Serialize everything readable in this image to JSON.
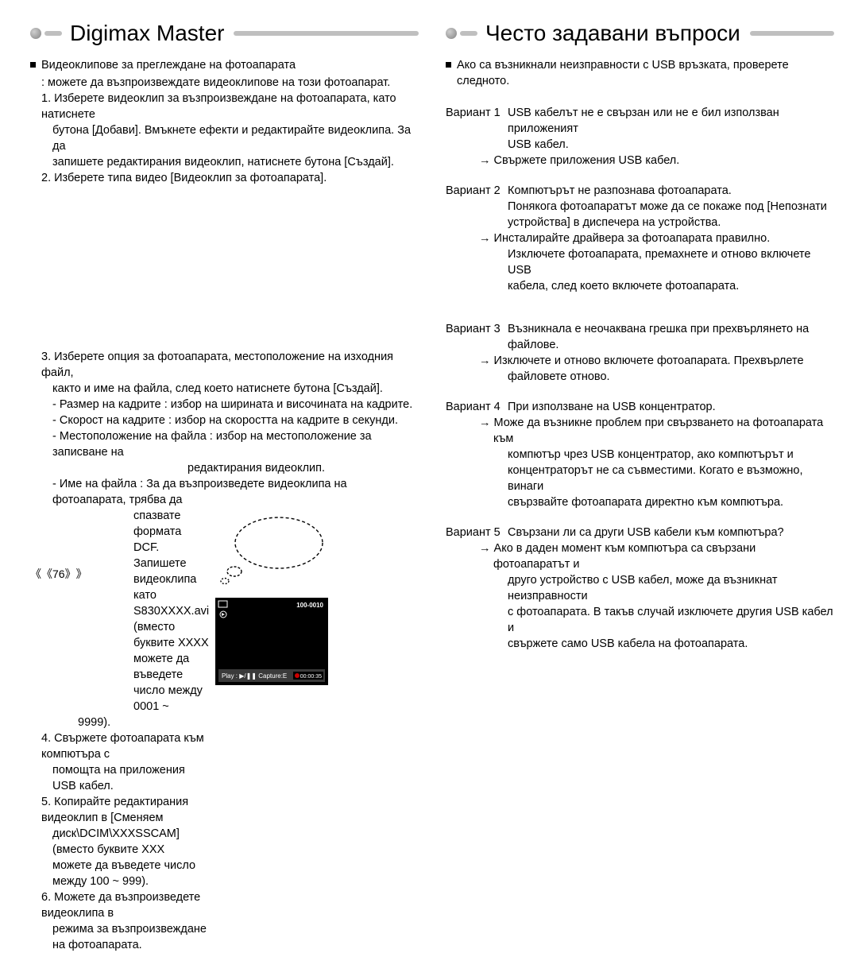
{
  "left": {
    "title": "Digimax Master",
    "bullet_intro": "Видеоклипове за преглеждане на фотоапарата",
    "intro_line2": ": можете да възпроизвеждате видеоклипове на този фотоапарат.",
    "step1_a": "1. Изберете видеоклип за възпроизвеждане на фотоапарата, като натиснете",
    "step1_b": "бутона [Добави]. Вмъкнете ефекти и редактирайте видеоклипа. За да",
    "step1_c": "запишете редактирания видеоклип, натиснете бутона [Създай].",
    "step2": "2. Изберете типа видео [Видеоклип за фотоапарата].",
    "step3_a": "3. Изберете опция за фотоапарата, местоположение на изходния файл,",
    "step3_b": "както и име на файла, след което натиснете бутона [Създай].",
    "step3_c": "- Размер на кадрите : избор на ширината и височината на кадрите.",
    "step3_d": "- Скорост на кадрите : избор на скоростта на кадрите в секунди.",
    "step3_e": "- Местоположение на файла : избор на местоположение за записване на",
    "step3_e2": "редактирания видеоклип.",
    "step3_f": "- Име на файла : За да възпроизведете видеоклипа на фотоапарата, трябва да",
    "step3_f2": "спазвате формата DCF. Запишете",
    "step3_f3": "видеоклипа като S830XXXX.avi",
    "step3_f4": "(вместо буквите XXXX можете да",
    "step3_f5": "въведете число между 0001 ~",
    "step3_f6": "9999).",
    "step4_a": "4. Свържете фотоапарата към компютъра с",
    "step4_b": "помощта на приложения USB кабел.",
    "step5_a": "5. Копирайте редактирания видеоклип в [Сменяем",
    "step5_b": "диск\\DCIM\\XXXSSCAM] (вместо буквите XXX",
    "step5_c": "можете да въведете число между 100 ~ 999).",
    "step6_a": "6. Можете да възпроизведете видеоклипа в",
    "step6_b": "режима за възпроизвеждане на фотоапарата.",
    "preview": {
      "top_right": "100-0010",
      "play_label": "Play : ▶/❚❚   Capture:E",
      "time": "00:00:35",
      "bg": "#000000",
      "text": "#ffffff",
      "bar_bg": "#333333"
    }
  },
  "right": {
    "title": "Често задавани въпроси",
    "bullet_intro": "Ако са възникнали неизправности с USB връзката, проверете следното.",
    "case1_label": "Вариант 1",
    "case1_a": "USB кабелът не е свързан или не е бил използван приложеният",
    "case1_b": "USB кабел.",
    "case1_arrow": "→ Свържете приложения USB кабел.",
    "case2_label": "Вариант 2",
    "case2_a": "Компютърът не разпознава фотоапарата.",
    "case2_b": "Понякога фотоапаратът може да се покаже под [Непознати",
    "case2_c": "устройства] в диспечера на устройства.",
    "case2_arrow1": "→ Инсталирайте драйвера за фотоапарата правилно.",
    "case2_d": "Изключете фотоапарата, премахнете и отново включете USB",
    "case2_e": "кабела, след което включете фотоапарата.",
    "case3_label": "Вариант 3",
    "case3_a": "Възникнала е неочаквана грешка при прехвърлянето на файлове.",
    "case3_arrow": "→ Изключете и отново включете фотоапарата. Прехвърлете",
    "case3_b": "файловете отново.",
    "case4_label": "Вариант 4",
    "case4_a": "При използване на USB концентратор.",
    "case4_arrow": "→ Може да възникне проблем при свързването на фотоапарата към",
    "case4_b": "компютър чрез USB концентратор, ако компютърът и",
    "case4_c": "концентраторът не са съвместими. Когато е възможно, винаги",
    "case4_d": "свързвайте фотоапарата директно към компютъра.",
    "case5_label": "Вариант 5",
    "case5_a": "Свързани ли са други USB кабели към компютъра?",
    "case5_arrow": "→ Ако в даден момент към компютъра са свързани фотоапаратът и",
    "case5_b": "друго устройство с USB кабел, може да възникнат неизправности",
    "case5_c": "с фотоапарата. В такъв случай изключете другия USB кабел и",
    "case5_d": "свържете само USB кабела на фотоапарата."
  },
  "page_number": "76"
}
